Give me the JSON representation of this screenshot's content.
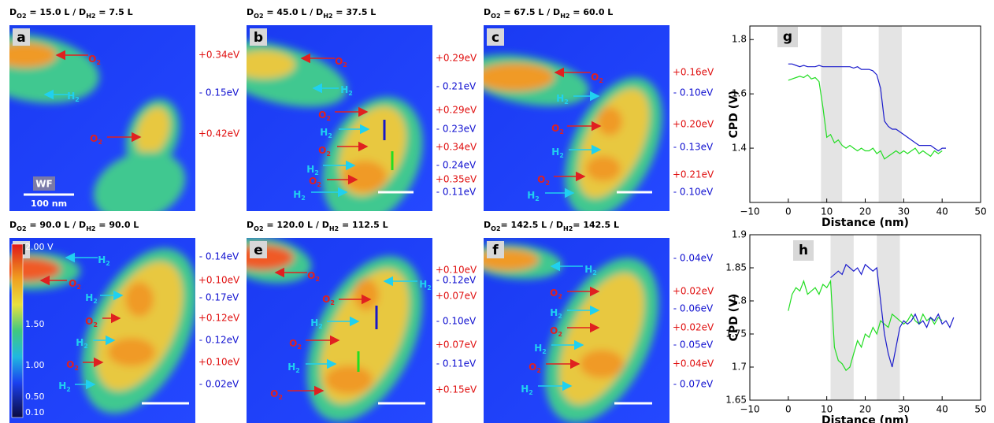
{
  "panels": [
    {
      "letter": "a",
      "title": [
        "D",
        "O2",
        " = 15.0 L / D",
        "H2",
        " = 7.5 L"
      ],
      "markers": [
        [
          "O",
          "2"
        ],
        [
          "H",
          "2"
        ],
        [
          "O",
          "2"
        ]
      ],
      "energies": [
        "+0.34eV",
        "- 0.15eV",
        "+0.42eV"
      ],
      "wf_label": "WF",
      "scale_label": "100 nm"
    },
    {
      "letter": "b",
      "title": [
        "D",
        "O2",
        " = 45.0 L / D",
        "H2",
        " = 37.5 L"
      ],
      "markers": [
        [
          "O",
          "2"
        ],
        [
          "H",
          "2"
        ],
        [
          "O",
          "2"
        ],
        [
          "H",
          "2"
        ],
        [
          "O",
          "2"
        ],
        [
          "H",
          "2"
        ],
        [
          "O",
          "2"
        ],
        [
          "H",
          "2"
        ]
      ],
      "energies": [
        "+0.29eV",
        "- 0.21eV",
        "+0.29eV",
        "- 0.23eV",
        "+0.34eV",
        "- 0.24eV",
        "+0.35eV",
        "- 0.11eV"
      ]
    },
    {
      "letter": "c",
      "title": [
        "D",
        "O2",
        " = 67.5 L / D",
        "H2",
        " = 60.0 L"
      ],
      "markers": [
        [
          "O",
          "2"
        ],
        [
          "H",
          "2"
        ],
        [
          "O",
          "2"
        ],
        [
          "H",
          "2"
        ],
        [
          "O",
          "2"
        ],
        [
          "H",
          "2"
        ]
      ],
      "energies": [
        "+0.16eV",
        "- 0.10eV",
        "+0.20eV",
        "- 0.13eV",
        "+0.21eV",
        "- 0.10eV"
      ]
    },
    {
      "letter": "d",
      "title": [
        "D",
        "O2",
        " = 90.0 L / D",
        "H2",
        " = 90.0 L"
      ],
      "markers": [
        [
          "H",
          "2"
        ],
        [
          "O",
          "2"
        ],
        [
          "H",
          "2"
        ],
        [
          "O",
          "2"
        ],
        [
          "H",
          "2"
        ],
        [
          "O",
          "2"
        ],
        [
          "H",
          "2"
        ]
      ],
      "energies": [
        "- 0.14eV",
        "+0.10eV",
        "- 0.17eV",
        "+0.12eV",
        "- 0.12eV",
        "+0.10eV",
        "- 0.02eV"
      ],
      "colorbar_labels": [
        "2.00 V",
        "1.50",
        "1.00",
        "0.50",
        "0.10"
      ]
    },
    {
      "letter": "e",
      "title": [
        "D",
        "O2",
        " = 120.0 L / D",
        "H2",
        " = 112.5 L"
      ],
      "markers": [
        [
          "O",
          "2"
        ],
        [
          "H",
          "2"
        ],
        [
          "O",
          "2"
        ],
        [
          "H",
          "2"
        ],
        [
          "O",
          "2"
        ],
        [
          "H",
          "2"
        ],
        [
          "O",
          "2"
        ]
      ],
      "energies": [
        "+0.10eV",
        "- 0.12eV",
        "+0.07eV",
        "- 0.10eV",
        "+0.07eV",
        "- 0.11eV",
        "+0.15eV"
      ]
    },
    {
      "letter": "f",
      "title": [
        "D",
        "O2",
        "= 142.5 L / D",
        "H2",
        "= 142.5 L"
      ],
      "markers": [
        [
          "H",
          "2"
        ],
        [
          "O",
          "2"
        ],
        [
          "H",
          "2"
        ],
        [
          "O",
          "2"
        ],
        [
          "H",
          "2"
        ],
        [
          "O",
          "2"
        ],
        [
          "H",
          "2"
        ]
      ],
      "energies": [
        "- 0.04eV",
        "+0.02eV",
        "- 0.06eV",
        "+0.02eV",
        "- 0.05eV",
        "+0.04eV",
        "- 0.07eV"
      ]
    }
  ],
  "chart_data": [
    {
      "type": "line",
      "panel_label": "g",
      "xlabel": "Distance (nm)",
      "ylabel": "CPD (V)",
      "xlim": [
        -10,
        50
      ],
      "ylim": [
        1.2,
        1.85
      ],
      "xticks": [
        {
          "value": -10,
          "label": "−10"
        },
        0,
        10,
        20,
        30,
        40,
        50
      ],
      "yticks": [
        1.4,
        1.6,
        1.8
      ],
      "shaded_ranges": [
        [
          8.5,
          14
        ],
        [
          23.5,
          29.5
        ]
      ],
      "series": [
        {
          "color": "#1c1ccc",
          "x": [
            0,
            1,
            2,
            3,
            4,
            5,
            6,
            7,
            8,
            9,
            10,
            11,
            12,
            13,
            14,
            15,
            16,
            17,
            18,
            19,
            20,
            21,
            22,
            23,
            24,
            25,
            26,
            27,
            28,
            29,
            30,
            31,
            32,
            33,
            34,
            35,
            36,
            37,
            38,
            39,
            40,
            41
          ],
          "values": [
            1.71,
            1.71,
            1.705,
            1.7,
            1.705,
            1.7,
            1.7,
            1.7,
            1.705,
            1.7,
            1.7,
            1.7,
            1.7,
            1.7,
            1.7,
            1.7,
            1.7,
            1.695,
            1.7,
            1.69,
            1.69,
            1.69,
            1.685,
            1.67,
            1.62,
            1.5,
            1.48,
            1.47,
            1.47,
            1.46,
            1.45,
            1.44,
            1.43,
            1.42,
            1.41,
            1.41,
            1.41,
            1.41,
            1.4,
            1.39,
            1.4,
            1.4
          ]
        },
        {
          "color": "#22dd22",
          "x": [
            0,
            1,
            2,
            3,
            4,
            5,
            6,
            7,
            8,
            9,
            10,
            11,
            12,
            13,
            14,
            15,
            16,
            17,
            18,
            19,
            20,
            21,
            22,
            23,
            24,
            25,
            26,
            27,
            28,
            29,
            30,
            31,
            32,
            33,
            34,
            35,
            36,
            37,
            38,
            39,
            40
          ],
          "values": [
            1.65,
            1.655,
            1.66,
            1.665,
            1.66,
            1.67,
            1.655,
            1.66,
            1.645,
            1.55,
            1.44,
            1.45,
            1.42,
            1.43,
            1.41,
            1.4,
            1.41,
            1.4,
            1.39,
            1.4,
            1.39,
            1.39,
            1.4,
            1.38,
            1.39,
            1.36,
            1.37,
            1.38,
            1.39,
            1.38,
            1.39,
            1.38,
            1.39,
            1.4,
            1.38,
            1.39,
            1.38,
            1.37,
            1.39,
            1.38,
            1.39
          ]
        }
      ]
    },
    {
      "type": "line",
      "panel_label": "h",
      "xlabel": "Distance (nm)",
      "ylabel": "CPD (V)",
      "xlim": [
        -10,
        50
      ],
      "ylim": [
        1.65,
        1.9
      ],
      "xticks": [
        {
          "value": -10,
          "label": "−10"
        },
        0,
        10,
        20,
        30,
        40,
        50
      ],
      "yticks": [
        1.65,
        1.7,
        1.75,
        1.8,
        1.85,
        1.9
      ],
      "shaded_ranges": [
        [
          11,
          17
        ],
        [
          23,
          29
        ]
      ],
      "series": [
        {
          "color": "#22dd22",
          "x": [
            0,
            1,
            2,
            3,
            4,
            5,
            6,
            7,
            8,
            9,
            10,
            11,
            12,
            13,
            14,
            15,
            16,
            17,
            18,
            19,
            20,
            21,
            22,
            23,
            24,
            25,
            26,
            27,
            28,
            29,
            30,
            31,
            32,
            33,
            34,
            35,
            36,
            37,
            38,
            39,
            40
          ],
          "values": [
            1.785,
            1.81,
            1.82,
            1.815,
            1.83,
            1.81,
            1.815,
            1.82,
            1.81,
            1.825,
            1.82,
            1.83,
            1.73,
            1.71,
            1.705,
            1.695,
            1.7,
            1.72,
            1.74,
            1.73,
            1.75,
            1.745,
            1.76,
            1.75,
            1.77,
            1.765,
            1.76,
            1.78,
            1.775,
            1.77,
            1.765,
            1.77,
            1.78,
            1.77,
            1.765,
            1.78,
            1.77,
            1.775,
            1.765,
            1.775,
            1.77
          ]
        },
        {
          "color": "#1c1ccc",
          "x": [
            11,
            12,
            13,
            14,
            15,
            16,
            17,
            18,
            19,
            20,
            21,
            22,
            23,
            24,
            25,
            26,
            27,
            28,
            29,
            30,
            31,
            32,
            33,
            34,
            35,
            36,
            37,
            38,
            39,
            40,
            41,
            42,
            43
          ],
          "values": [
            1.835,
            1.84,
            1.845,
            1.84,
            1.855,
            1.85,
            1.845,
            1.85,
            1.84,
            1.855,
            1.85,
            1.845,
            1.85,
            1.8,
            1.75,
            1.72,
            1.7,
            1.73,
            1.76,
            1.77,
            1.765,
            1.77,
            1.78,
            1.765,
            1.77,
            1.76,
            1.775,
            1.77,
            1.78,
            1.765,
            1.77,
            1.76,
            1.775
          ]
        }
      ]
    }
  ]
}
